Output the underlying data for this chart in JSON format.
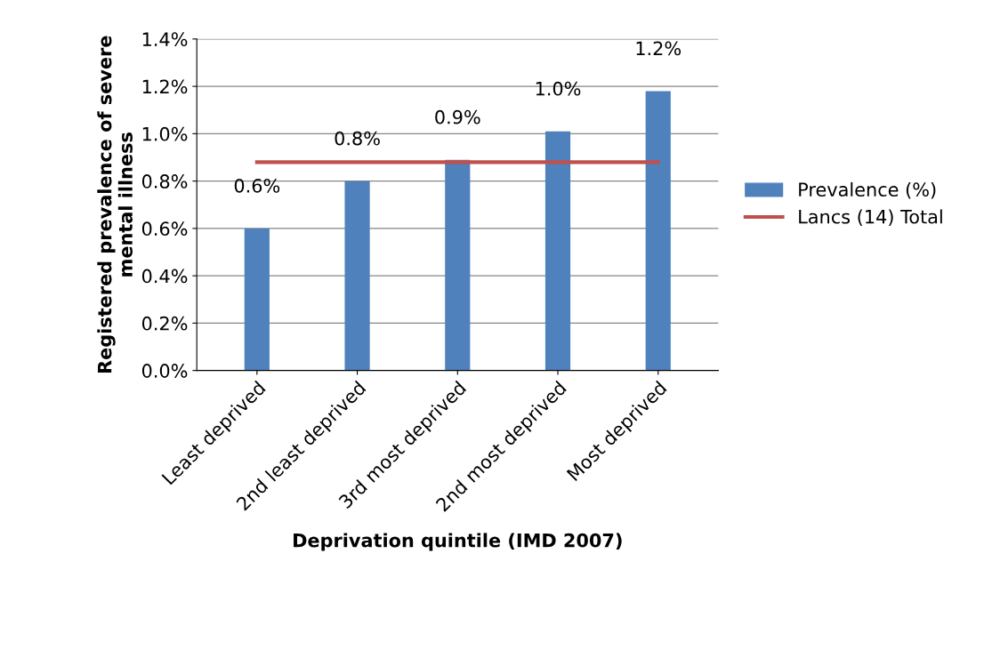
{
  "chart_data": {
    "type": "bar",
    "xlabel": "Deprivation quintile (IMD 2007)",
    "ylabel": "Registered prevalence of severe mental illness",
    "categories": [
      "Least deprived",
      "2nd least deprived",
      "3rd most deprived",
      "2nd most deprived",
      "Most deprived"
    ],
    "series": [
      {
        "name": "Prevalence (%)",
        "color": "#4f81bd",
        "values": [
          0.6,
          0.8,
          0.89,
          1.01,
          1.18
        ],
        "value_labels": [
          "0.6%",
          "0.8%",
          "0.9%",
          "1.0%",
          "1.2%"
        ]
      },
      {
        "name": "Lancs (14) Total",
        "type": "line",
        "color": "#c0504d",
        "values": [
          0.88,
          0.88,
          0.88,
          0.88,
          0.88
        ]
      }
    ],
    "ylim": [
      0,
      1.4
    ],
    "yticks": [
      {
        "value": 0,
        "label": "0.0%"
      },
      {
        "value": 0.2,
        "label": "0.2%"
      },
      {
        "value": 0.4,
        "label": "0.4%"
      },
      {
        "value": 0.6,
        "label": "0.6%"
      },
      {
        "value": 0.8,
        "label": "0.8%"
      },
      {
        "value": 1.0,
        "label": "1.0%"
      },
      {
        "value": 1.2,
        "label": "1.2%"
      },
      {
        "value": 1.4,
        "label": "1.4%"
      }
    ],
    "grid": "y",
    "legend": "right",
    "marker": "none"
  }
}
